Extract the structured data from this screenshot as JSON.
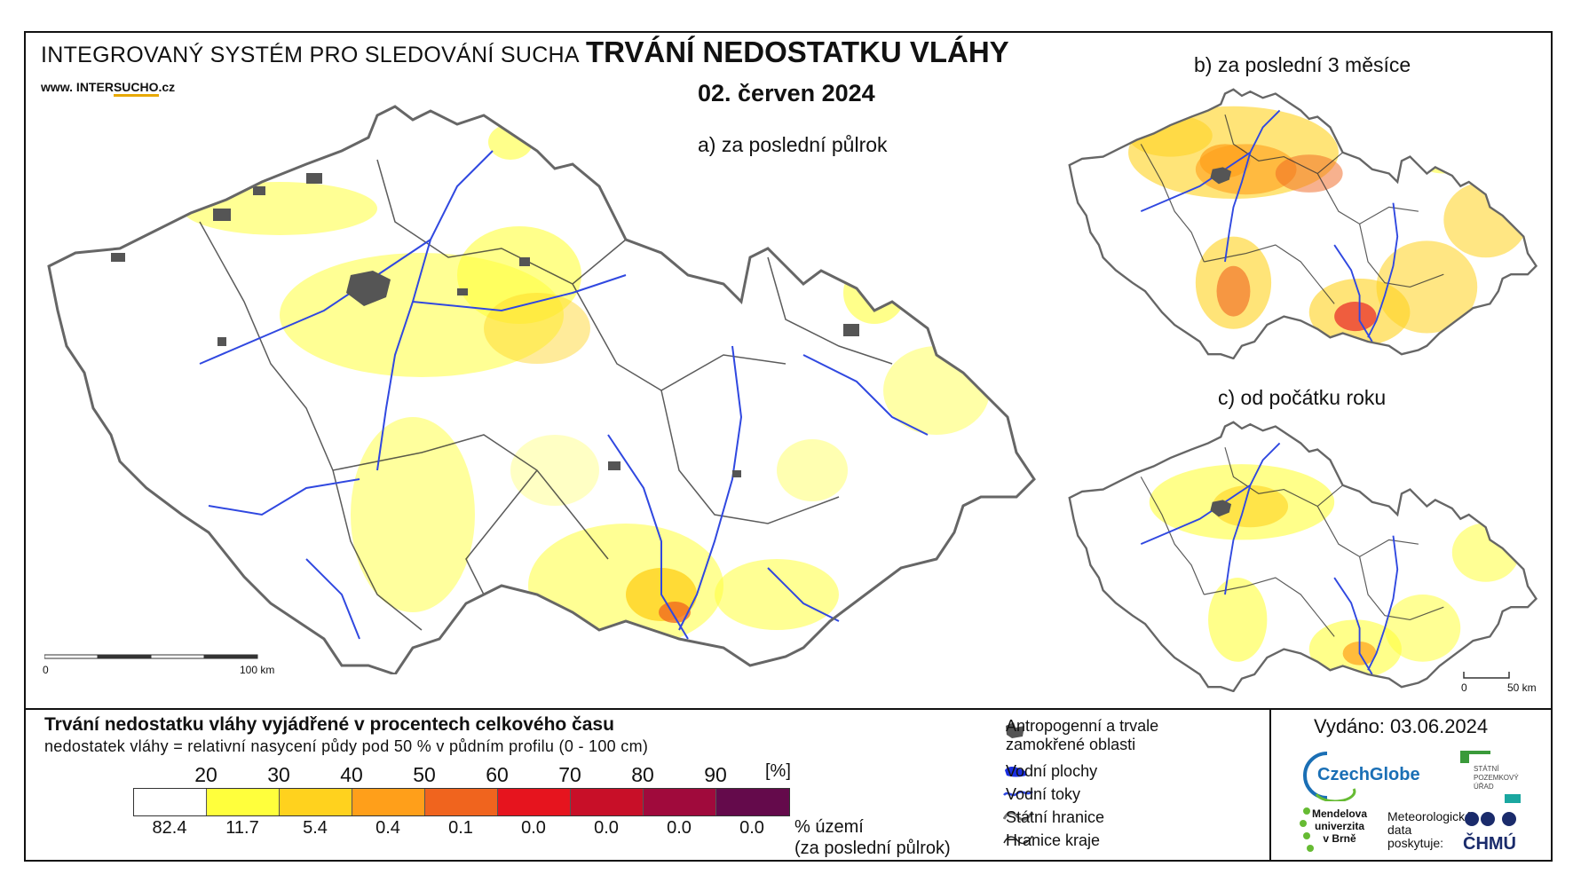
{
  "header": {
    "system": "INTEGROVANÝ SYSTÉM PRO SLEDOVÁNÍ SUCHA",
    "web_prefix": "www. INTER",
    "web_highlight": "SUCHO",
    "web_suffix": ".cz",
    "title": "TRVÁNÍ NEDOSTATKU VLÁHY",
    "date": "02. červen 2024"
  },
  "maps": {
    "a_label": "a) za poslední půlrok",
    "b_label": "b) za poslední 3 měsíce",
    "c_label": "c) od počátku roku",
    "scale_main": {
      "zero": "0",
      "end": "100 km"
    },
    "scale_small": {
      "zero": "0",
      "end": "50 km"
    }
  },
  "legend": {
    "title": "Trvání nedostatku vláhy vyjádřené v procentech celkového času",
    "subtitle": "nedostatek vláhy = relativní nasycení půdy pod 50 % v půdním profilu (0 - 100 cm)",
    "unit": "[%]",
    "thresholds": [
      "20",
      "30",
      "40",
      "50",
      "60",
      "70",
      "80",
      "90"
    ],
    "colors": [
      "#ffffff",
      "#ffff3c",
      "#ffd21e",
      "#ff9f1a",
      "#f0641e",
      "#e6141e",
      "#c80f28",
      "#a00a3c",
      "#640a4b"
    ],
    "percentages": [
      "82.4",
      "11.7",
      "5.4",
      "0.4",
      "0.1",
      "0.0",
      "0.0",
      "0.0",
      "0.0"
    ],
    "pct_note_1": "% území",
    "pct_note_2": "(za poslední půlrok)"
  },
  "keys": {
    "anthropogenic_1": "Antropogenní a trvale",
    "anthropogenic_2": "zamokřené oblasti",
    "water_bodies": "Vodní plochy",
    "rivers": "Vodní toky",
    "state_border": "Státní hranice",
    "region_border": "Hranice kraje"
  },
  "footer": {
    "issued": "Vydáno: 03.06.2024",
    "czechglobe": "CzechGlobe",
    "spu_1": "STÁTNÍ",
    "spu_2": "POZEMKOVÝ",
    "spu_3": "ÚŘAD",
    "mendel_1": "Mendelova",
    "mendel_2": "univerzita",
    "mendel_3": "v Brně",
    "meteo_1": "Meteorologická",
    "meteo_2": "data",
    "meteo_3": "poskytuje:",
    "chmu": "ČHMÚ"
  }
}
